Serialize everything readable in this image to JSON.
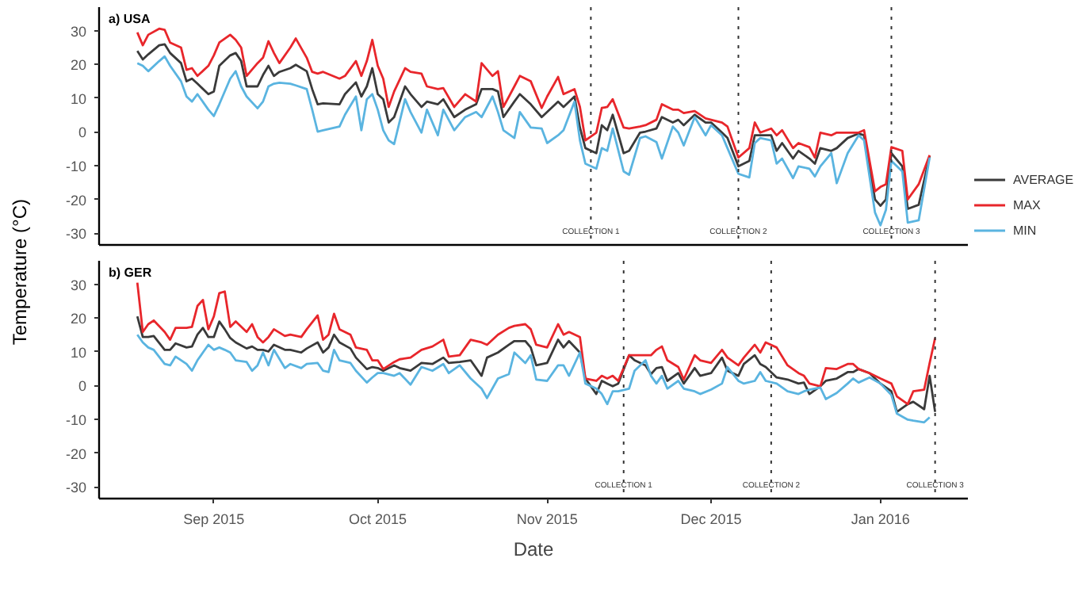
{
  "chart_data": [
    {
      "type": "line",
      "title": "a) USA",
      "ylabel": "Temperature (°C)",
      "legend": "right",
      "grid": false,
      "tick_labels": "y",
      "xlim": [
        "2015-08-11",
        "2016-01-17"
      ],
      "ylim": [
        -33.5,
        37
      ],
      "yticks": [
        -30,
        -20,
        -10,
        0,
        10,
        20,
        30
      ],
      "x": [
        "2015-08-18",
        "2015-08-19",
        "2015-08-20",
        "2015-08-22",
        "2015-08-23",
        "2015-08-24",
        "2015-08-26",
        "2015-08-27",
        "2015-08-28",
        "2015-08-29",
        "2015-08-31",
        "2015-09-01",
        "2015-09-02",
        "2015-09-04",
        "2015-09-05",
        "2015-09-06",
        "2015-09-07",
        "2015-09-09",
        "2015-09-10",
        "2015-09-11",
        "2015-09-12",
        "2015-09-13",
        "2015-09-15",
        "2015-09-16",
        "2015-09-18",
        "2015-09-19",
        "2015-09-20",
        "2015-09-21",
        "2015-09-24",
        "2015-09-25",
        "2015-09-27",
        "2015-09-28",
        "2015-09-29",
        "2015-09-30",
        "2015-10-01",
        "2015-10-02",
        "2015-10-03",
        "2015-10-04",
        "2015-10-06",
        "2015-10-07",
        "2015-10-09",
        "2015-10-10",
        "2015-10-12",
        "2015-10-13",
        "2015-10-15",
        "2015-10-17",
        "2015-10-19",
        "2015-10-20",
        "2015-10-22",
        "2015-10-23",
        "2015-10-24",
        "2015-10-26",
        "2015-10-27",
        "2015-10-29",
        "2015-10-31",
        "2015-11-01",
        "2015-11-03",
        "2015-11-04",
        "2015-11-06",
        "2015-11-07",
        "2015-11-08",
        "2015-11-10",
        "2015-11-11",
        "2015-11-12",
        "2015-11-13",
        "2015-11-15",
        "2015-11-16",
        "2015-11-18",
        "2015-11-19",
        "2015-11-21",
        "2015-11-22",
        "2015-11-24",
        "2015-11-25",
        "2015-11-26",
        "2015-11-28",
        "2015-11-30",
        "2015-12-01",
        "2015-12-03",
        "2015-12-04",
        "2015-12-06",
        "2015-12-08",
        "2015-12-09",
        "2015-12-10",
        "2015-12-12",
        "2015-12-13",
        "2015-12-14",
        "2015-12-16",
        "2015-12-17",
        "2015-12-19",
        "2015-12-20",
        "2015-12-21",
        "2015-12-23",
        "2015-12-24",
        "2015-12-26",
        "2015-12-28",
        "2015-12-29",
        "2015-12-31",
        "2016-01-01",
        "2016-01-02",
        "2016-01-03",
        "2016-01-05",
        "2016-01-06",
        "2016-01-08",
        "2016-01-10"
      ],
      "series": [
        {
          "name": "AVERAGE",
          "color": "#3a3a3a",
          "values": [
            24,
            21.5,
            23,
            25.7,
            26,
            23.4,
            20.4,
            15,
            15.8,
            14.3,
            11.2,
            12,
            19.6,
            22.7,
            23.4,
            21,
            13.5,
            13.5,
            16.9,
            19.6,
            16.6,
            17.8,
            18.9,
            19.9,
            18,
            12.7,
            8.2,
            8.5,
            8.2,
            11.2,
            14.7,
            10.5,
            13.5,
            18.9,
            11.2,
            9.7,
            2.8,
            4.4,
            13.5,
            11.2,
            7.4,
            9,
            8.2,
            9.7,
            4.4,
            6.6,
            8.2,
            12.7,
            12.7,
            12,
            4.4,
            9,
            11.2,
            8.2,
            4.4,
            5.9,
            9,
            7.4,
            10.5,
            1.3,
            -4.8,
            -6.3,
            2,
            0.5,
            5.1,
            -6.3,
            -5.6,
            -0.2,
            0.1,
            1,
            4.4,
            2.8,
            3.6,
            2,
            5.1,
            2.8,
            2.8,
            -0.2,
            -1.8,
            -10.2,
            -8.6,
            -1,
            -1,
            -1,
            -5.6,
            -3.3,
            -7.9,
            -5.6,
            -7.9,
            -9.4,
            -4.8,
            -5.6,
            -4.8,
            -1.8,
            -0.5,
            -1,
            -20,
            -21.9,
            -20,
            -6.3,
            -10.2,
            -22.8,
            -21.6,
            -7.1
          ]
        },
        {
          "name": "MAX",
          "color": "#e8262b",
          "values": [
            29.5,
            25.7,
            28.8,
            30.6,
            30.3,
            26.5,
            25,
            18.4,
            18.9,
            16.6,
            19.6,
            22.7,
            26.5,
            28.8,
            27.3,
            25,
            16.6,
            20.4,
            22,
            26.9,
            23.4,
            20.4,
            25,
            27.7,
            22,
            17.8,
            17.3,
            17.8,
            15.8,
            16.6,
            21,
            16.6,
            21,
            27.3,
            19.6,
            15.8,
            7.4,
            12,
            18.9,
            17.8,
            17.3,
            13.5,
            12.7,
            13,
            7.4,
            11.2,
            9,
            20.4,
            16.6,
            18,
            7.4,
            13.5,
            16.6,
            15,
            7.1,
            10.5,
            16.3,
            11.2,
            12.7,
            7.4,
            -2.5,
            -0.2,
            7.1,
            7.4,
            9.7,
            1.3,
            1,
            1.6,
            2,
            3.6,
            8.2,
            6.6,
            6.6,
            5.6,
            6.2,
            4,
            3.6,
            2.8,
            1.6,
            -7.6,
            -4.8,
            2.8,
            -0.2,
            1,
            -1,
            0.5,
            -4.8,
            -3.3,
            -4.5,
            -7.6,
            -0.2,
            -1,
            -0.2,
            -0.2,
            -0.2,
            0.5,
            -17.6,
            -16.3,
            -15.5,
            -4.5,
            -5.6,
            -20,
            -15.5,
            -6.9
          ]
        },
        {
          "name": "MIN",
          "color": "#5ab4e0",
          "values": [
            20.4,
            19.6,
            18,
            21,
            22.4,
            19.6,
            15,
            10.5,
            9,
            11.2,
            6.6,
            4.7,
            8.2,
            15.8,
            18,
            13.5,
            10.5,
            7,
            9,
            13.5,
            14.3,
            14.6,
            14.3,
            13.8,
            12.7,
            6.6,
            0.1,
            0.5,
            1.6,
            5.1,
            10.5,
            0.5,
            9.7,
            11.2,
            6.6,
            0.5,
            -2.5,
            -3.6,
            9.7,
            5.9,
            -0.2,
            6.6,
            -1,
            6.6,
            0.5,
            4.4,
            5.9,
            4.4,
            10.5,
            5.9,
            0.5,
            -1.8,
            5.9,
            1.3,
            1,
            -3.3,
            -1,
            0.5,
            9,
            -2.5,
            -9.4,
            -10.9,
            -4.8,
            -5.6,
            1,
            -11.7,
            -12.7,
            -1.8,
            -1.3,
            -3,
            -7.9,
            1.6,
            -0.2,
            -4,
            4.4,
            -1,
            2,
            -1,
            -4.8,
            -12.4,
            -13.5,
            -3.3,
            -1.8,
            -2.5,
            -9.4,
            -7.9,
            -13.7,
            -10.2,
            -10.9,
            -13.2,
            -10.2,
            -6.3,
            -15.2,
            -6.3,
            -1,
            -2.5,
            -23.9,
            -27.7,
            -23.1,
            -8.6,
            -11.7,
            -26.9,
            -26.2,
            -7.6
          ]
        }
      ],
      "ref_lines": [
        {
          "axis": "x",
          "value": "2015-11-09",
          "label": "COLLECTION 1",
          "color": "#333333",
          "line_style": "dotted"
        },
        {
          "axis": "x",
          "value": "2015-12-06",
          "label": "COLLECTION 2",
          "color": "#333333",
          "line_style": "dotted"
        },
        {
          "axis": "x",
          "value": "2016-01-03",
          "label": "COLLECTION 3",
          "color": "#333333",
          "line_style": "dotted"
        }
      ]
    },
    {
      "type": "line",
      "title": "b) GER",
      "xlabel": "Date",
      "grid": false,
      "xlim": [
        "2015-08-11",
        "2016-01-17"
      ],
      "ylim": [
        -33.5,
        37
      ],
      "yticks": [
        -30,
        -20,
        -10,
        0,
        10,
        20,
        30
      ],
      "xticks": [
        {
          "value": "2015-09-01",
          "label": "Sep 2015"
        },
        {
          "value": "2015-10-01",
          "label": "Oct 2015"
        },
        {
          "value": "2015-11-01",
          "label": "Nov 2015"
        },
        {
          "value": "2015-12-01",
          "label": "Dec 2015"
        },
        {
          "value": "2016-01-01",
          "label": "Jan 2016"
        }
      ],
      "x": [
        "2015-08-18",
        "2015-08-19",
        "2015-08-20",
        "2015-08-21",
        "2015-08-23",
        "2015-08-24",
        "2015-08-25",
        "2015-08-27",
        "2015-08-28",
        "2015-08-29",
        "2015-08-30",
        "2015-08-31",
        "2015-09-01",
        "2015-09-02",
        "2015-09-03",
        "2015-09-04",
        "2015-09-05",
        "2015-09-07",
        "2015-09-08",
        "2015-09-09",
        "2015-09-10",
        "2015-09-11",
        "2015-09-12",
        "2015-09-14",
        "2015-09-15",
        "2015-09-17",
        "2015-09-18",
        "2015-09-20",
        "2015-09-21",
        "2015-09-22",
        "2015-09-23",
        "2015-09-24",
        "2015-09-26",
        "2015-09-27",
        "2015-09-29",
        "2015-09-30",
        "2015-10-01",
        "2015-10-02",
        "2015-10-04",
        "2015-10-05",
        "2015-10-07",
        "2015-10-09",
        "2015-10-11",
        "2015-10-13",
        "2015-10-14",
        "2015-10-16",
        "2015-10-18",
        "2015-10-20",
        "2015-10-21",
        "2015-10-23",
        "2015-10-25",
        "2015-10-26",
        "2015-10-28",
        "2015-10-29",
        "2015-10-30",
        "2015-11-01",
        "2015-11-03",
        "2015-11-04",
        "2015-11-05",
        "2015-11-07",
        "2015-11-08",
        "2015-11-10",
        "2015-11-11",
        "2015-11-12",
        "2015-11-13",
        "2015-11-14",
        "2015-11-16",
        "2015-11-17",
        "2015-11-19",
        "2015-11-20",
        "2015-11-21",
        "2015-11-22",
        "2015-11-23",
        "2015-11-25",
        "2015-11-26",
        "2015-11-28",
        "2015-11-29",
        "2015-12-01",
        "2015-12-03",
        "2015-12-04",
        "2015-12-06",
        "2015-12-07",
        "2015-12-09",
        "2015-12-10",
        "2015-12-11",
        "2015-12-13",
        "2015-12-15",
        "2015-12-17",
        "2015-12-18",
        "2015-12-19",
        "2015-12-21",
        "2015-12-22",
        "2015-12-24",
        "2015-12-26",
        "2015-12-27",
        "2015-12-28",
        "2015-12-30",
        "2016-01-01",
        "2016-01-03",
        "2016-01-04",
        "2016-01-06",
        "2016-01-07",
        "2016-01-09",
        "2016-01-10",
        "2016-01-11"
      ],
      "series": [
        {
          "color": "#3a3a3a",
          "values": [
            20.5,
            14.4,
            14.4,
            14.7,
            10.6,
            10.6,
            12.5,
            11.3,
            11.6,
            15.1,
            17.1,
            14.4,
            14.4,
            19,
            16.7,
            14.1,
            12.8,
            11,
            11.6,
            10.6,
            10.6,
            10.1,
            12.1,
            10.6,
            10.6,
            9.8,
            11,
            12.8,
            9.8,
            11.3,
            15.1,
            12.8,
            11,
            8.3,
            4.9,
            5.5,
            5.2,
            4.4,
            6,
            5.2,
            4.4,
            6.7,
            6.4,
            8.3,
            6.7,
            7,
            7.5,
            2.9,
            8.3,
            9.8,
            12.1,
            13.2,
            13.2,
            11.3,
            6,
            6.7,
            13.6,
            11.3,
            13.2,
            9.8,
            2.1,
            -2.5,
            1.4,
            0.6,
            -0.2,
            0.6,
            9,
            7.5,
            6,
            3.4,
            5.2,
            5.5,
            1.4,
            3.7,
            0.6,
            5.2,
            2.9,
            3.7,
            8.3,
            4.4,
            2.9,
            6.4,
            9,
            6.4,
            5.5,
            2.4,
            1.8,
            0.6,
            0.9,
            -2.5,
            -0.2,
            1.4,
            2.1,
            4,
            4,
            4.9,
            3.7,
            0.6,
            -1.7,
            -7.8,
            -5.5,
            -4.8,
            -7,
            2.9,
            -7.8
          ]
        },
        {
          "color": "#e8262b",
          "values": [
            30.5,
            15.9,
            18.2,
            19.3,
            15.9,
            13.6,
            17.1,
            17.1,
            17.4,
            23.6,
            25.4,
            16.7,
            20.5,
            27.4,
            27.9,
            17.4,
            19,
            15.9,
            18.2,
            14.4,
            12.8,
            14.4,
            16.7,
            14.7,
            15.1,
            14.4,
            16.7,
            20.8,
            13.6,
            15.1,
            21.3,
            16.7,
            15.1,
            11.3,
            10.6,
            7.5,
            7.5,
            4.9,
            7,
            7.8,
            8.3,
            10.6,
            11.6,
            13.6,
            8.6,
            9,
            13.6,
            12.8,
            12.1,
            15.1,
            17.1,
            17.7,
            18.2,
            16.7,
            12.1,
            11.3,
            18.2,
            15.1,
            15.9,
            14.4,
            2.1,
            1.4,
            2.9,
            2.1,
            2.9,
            1.4,
            9,
            9,
            9,
            9,
            10.6,
            11.6,
            7.5,
            5.5,
            1.8,
            9,
            7.5,
            6.7,
            10.6,
            8.3,
            6,
            8.3,
            12.1,
            9.8,
            12.8,
            11.3,
            6,
            3.7,
            2.9,
            0.6,
            -0.2,
            5.2,
            4.9,
            6.4,
            6.4,
            4.9,
            3.7,
            2.1,
            0.6,
            -3.2,
            -5.5,
            -1.7,
            -1.2,
            6.7,
            14.1
          ]
        },
        {
          "color": "#5ab4e0",
          "values": [
            15.1,
            12.8,
            11.3,
            10.6,
            6.4,
            6,
            8.6,
            6.4,
            4.4,
            7.5,
            9.8,
            12.1,
            10.6,
            11.3,
            10.6,
            9.8,
            7.5,
            7,
            4.4,
            6,
            9.8,
            6,
            10.6,
            5.2,
            6.4,
            5.2,
            6.4,
            6.7,
            4.4,
            4,
            10.6,
            7.5,
            6.7,
            4.4,
            0.9,
            2.4,
            3.7,
            3.7,
            2.9,
            3.7,
            0.3,
            5.5,
            4.4,
            6.4,
            3.7,
            6,
            2.1,
            -0.9,
            -3.7,
            2.1,
            3.4,
            9.8,
            6.7,
            9,
            1.8,
            1.4,
            6,
            6,
            2.9,
            9.8,
            0.6,
            -0.9,
            -2.5,
            -5.5,
            -1.7,
            -1.7,
            -0.9,
            4.4,
            7.5,
            2.9,
            0.6,
            2.9,
            -0.9,
            1.4,
            -0.9,
            -1.7,
            -2.5,
            -1.2,
            0.6,
            5.5,
            1.4,
            0.6,
            1.4,
            4,
            1.4,
            0.6,
            -1.7,
            -2.5,
            -1.7,
            -1.2,
            -0.6,
            -4,
            -2.2,
            0.6,
            2.1,
            0.9,
            2.4,
            0.6,
            -2.8,
            -8.3,
            -10.1,
            -10.4,
            -10.9,
            -9.4,
            null
          ]
        }
      ],
      "ref_lines": [
        {
          "axis": "x",
          "value": "2015-11-15",
          "label": "COLLECTION 1",
          "color": "#333333",
          "line_style": "dotted"
        },
        {
          "axis": "x",
          "value": "2015-12-12",
          "label": "COLLECTION 2",
          "color": "#333333",
          "line_style": "dotted"
        },
        {
          "axis": "x",
          "value": "2016-01-11",
          "label": "COLLECTION 3",
          "color": "#333333",
          "line_style": "dotted"
        }
      ]
    }
  ]
}
